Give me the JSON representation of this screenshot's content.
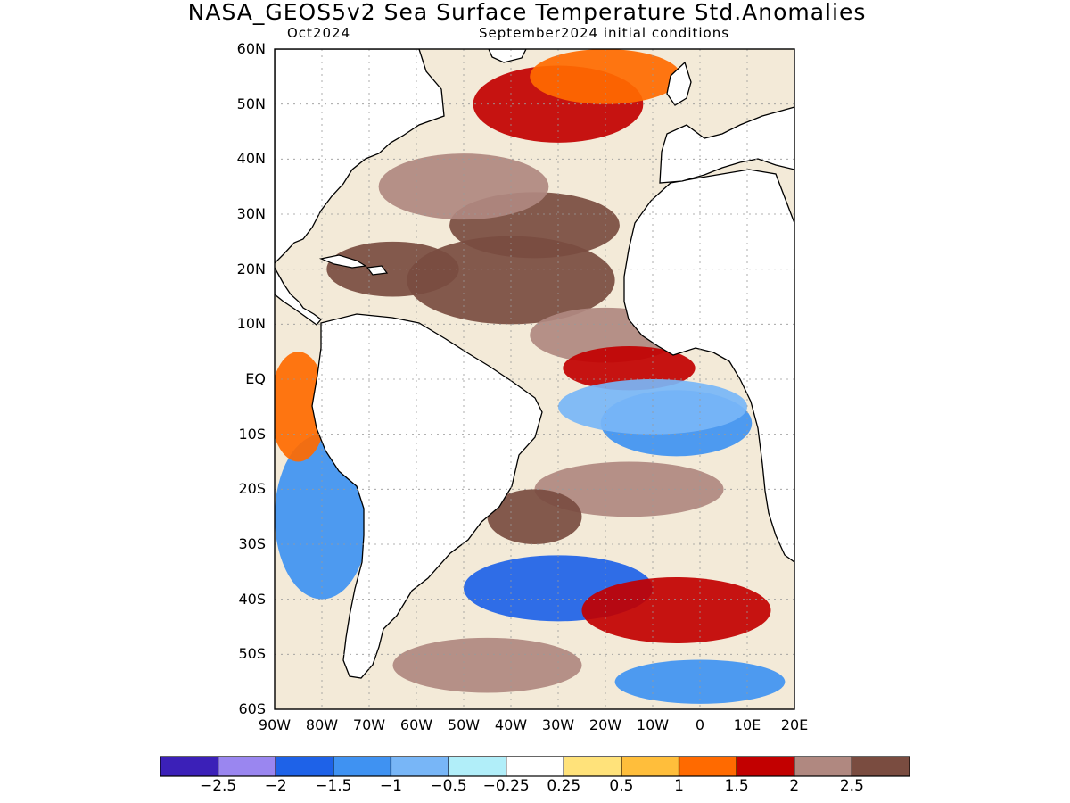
{
  "title": "NASA_GEOS5v2 Sea Surface Temperature Std.Anomalies",
  "subtitle_left": "Oct2024",
  "subtitle_right": "September2024 initial conditions",
  "lat_labels": [
    "60N",
    "50N",
    "40N",
    "30N",
    "20N",
    "10N",
    "EQ",
    "10S",
    "20S",
    "30S",
    "40S",
    "50S",
    "60S"
  ],
  "lon_labels": [
    "90W",
    "80W",
    "70W",
    "60W",
    "50W",
    "40W",
    "30W",
    "20W",
    "10W",
    "0",
    "10E",
    "20E"
  ],
  "colorbar": {
    "colors": [
      "#3b20b8",
      "#9a86f0",
      "#1e62e8",
      "#3f92f2",
      "#78b6f7",
      "#b1eef9",
      "#ffffff",
      "#ffe27a",
      "#ffbe3b",
      "#ff6a00",
      "#c20000",
      "#b08880",
      "#7a4c40"
    ],
    "labels": [
      "−2.5",
      "−2",
      "−1.5",
      "−1",
      "−0.5",
      "−0.25",
      "0.25",
      "0.5",
      "1",
      "1.5",
      "2",
      "2.5"
    ]
  },
  "map": {
    "lon_range": [
      -90,
      20
    ],
    "lat_range": [
      -60,
      60
    ],
    "land_color": "#ffffff",
    "coast_color": "#000000",
    "anomaly_regions": [
      {
        "level": "2.5",
        "lon": -40,
        "lat": 18,
        "rx": 22,
        "ry": 8
      },
      {
        "level": "2.5",
        "lon": -65,
        "lat": 20,
        "rx": 14,
        "ry": 5
      },
      {
        "level": "2.5",
        "lon": -35,
        "lat": 28,
        "rx": 18,
        "ry": 6
      },
      {
        "level": "2",
        "lon": -50,
        "lat": 35,
        "rx": 18,
        "ry": 6
      },
      {
        "level": "2",
        "lon": -20,
        "lat": 8,
        "rx": 16,
        "ry": 5
      },
      {
        "level": "1.5",
        "lon": -15,
        "lat": 2,
        "rx": 14,
        "ry": 4
      },
      {
        "level": "1.5",
        "lon": -30,
        "lat": 50,
        "rx": 18,
        "ry": 7
      },
      {
        "level": "1",
        "lon": -20,
        "lat": 55,
        "rx": 16,
        "ry": 5
      },
      {
        "level": "-1",
        "lon": -5,
        "lat": -8,
        "rx": 16,
        "ry": 6
      },
      {
        "level": "-0.5",
        "lon": -10,
        "lat": -5,
        "rx": 20,
        "ry": 5
      },
      {
        "level": "2",
        "lon": -15,
        "lat": -20,
        "rx": 20,
        "ry": 5
      },
      {
        "level": "2.5",
        "lon": -35,
        "lat": -25,
        "rx": 10,
        "ry": 5
      },
      {
        "level": "-1.5",
        "lon": -30,
        "lat": -38,
        "rx": 20,
        "ry": 6
      },
      {
        "level": "1.5",
        "lon": -5,
        "lat": -42,
        "rx": 20,
        "ry": 6
      },
      {
        "level": "-1",
        "lon": -80,
        "lat": -25,
        "rx": 10,
        "ry": 15
      },
      {
        "level": "1",
        "lon": -85,
        "lat": -5,
        "rx": 6,
        "ry": 10
      },
      {
        "level": "2",
        "lon": -45,
        "lat": -52,
        "rx": 20,
        "ry": 5
      },
      {
        "level": "-1",
        "lon": 0,
        "lat": -55,
        "rx": 18,
        "ry": 4
      }
    ]
  }
}
